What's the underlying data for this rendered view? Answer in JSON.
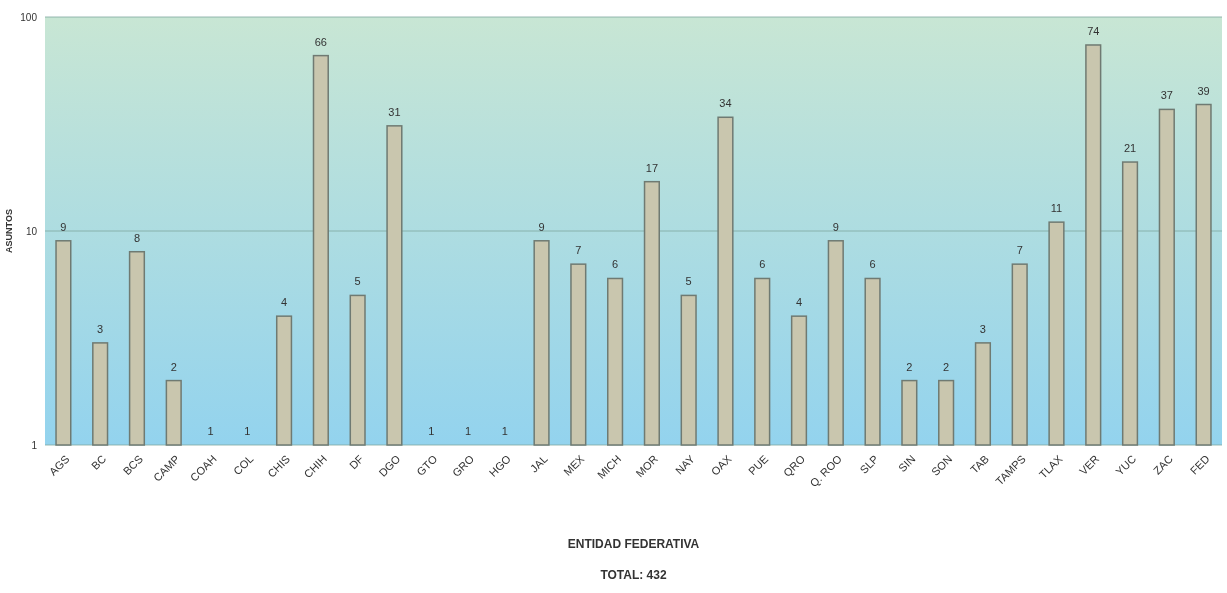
{
  "chart_data": {
    "type": "bar",
    "xlabel": "ENTIDAD FEDERATIVA",
    "ylabel": "ASUNTOS",
    "categories": [
      "AGS",
      "BC",
      "BCS",
      "CAMP",
      "COAH",
      "COL",
      "CHIS",
      "CHIH",
      "DF",
      "DGO",
      "GTO",
      "GRO",
      "HGO",
      "JAL",
      "MEX",
      "MICH",
      "MOR",
      "NAY",
      "OAX",
      "PUE",
      "QRO",
      "Q. ROO",
      "SLP",
      "SIN",
      "SON",
      "TAB",
      "TAMPS",
      "TLAX",
      "VER",
      "YUC",
      "ZAC",
      "FED"
    ],
    "values": [
      9,
      3,
      8,
      2,
      1,
      1,
      4,
      66,
      5,
      31,
      1,
      1,
      1,
      9,
      7,
      6,
      17,
      5,
      34,
      6,
      4,
      9,
      6,
      2,
      2,
      3,
      7,
      11,
      74,
      21,
      37,
      39
    ],
    "color": "#c9c6ae",
    "log": true,
    "ylim": [
      1,
      100
    ],
    "yticks": [
      1,
      10,
      100
    ],
    "grid": "y",
    "data_labels": true,
    "annotations": [
      "TOTAL:  432"
    ]
  }
}
